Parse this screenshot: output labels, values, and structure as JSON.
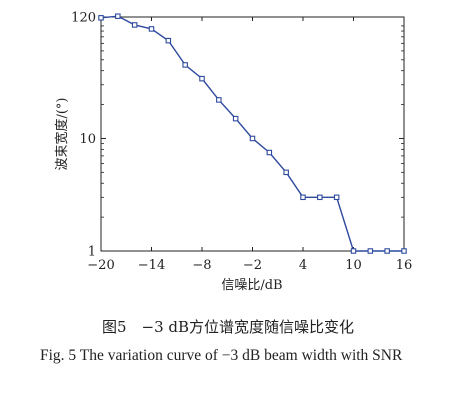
{
  "chart_data": {
    "type": "line",
    "xlabel": "信噪比/dB",
    "ylabel": "波束宽度/(°)",
    "x_scale": "linear",
    "y_scale": "log",
    "xlim": [
      -20,
      16
    ],
    "ylim": [
      1,
      120
    ],
    "x_ticks": [
      -20,
      -14,
      -8,
      -2,
      4,
      10,
      16
    ],
    "y_ticks": [
      1,
      10,
      120
    ],
    "x_tick_labels": [
      "−20",
      "−14",
      "−8",
      "−2",
      "4",
      "10",
      "16"
    ],
    "y_tick_labels": [
      "1",
      "10",
      "120"
    ],
    "grid": false,
    "line_color": "#2e4a9e",
    "marker": "square",
    "series": [
      {
        "x": [
          -20,
          -18,
          -16,
          -14,
          -12,
          -10,
          -8,
          -6,
          -4,
          -2,
          0,
          2,
          4,
          6,
          8,
          10,
          12,
          14,
          16
        ],
        "y": [
          118,
          122,
          102,
          94,
          74,
          45,
          34,
          22,
          15,
          10,
          7.5,
          5,
          3,
          3,
          3,
          1,
          1,
          1,
          1
        ]
      }
    ]
  },
  "caption": {
    "chinese": "图5　−3 dB方位谱宽度随信噪比变化",
    "english": "Fig. 5  The variation curve of −3 dB beam width with SNR"
  }
}
